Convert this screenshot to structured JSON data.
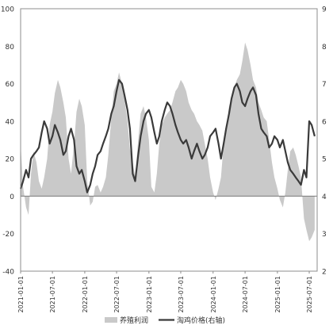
{
  "chart_data": {
    "type": "area",
    "dual_axis": true,
    "x_ticks": [
      "2021-01-01",
      "2021-07-01",
      "2022-01-01",
      "2022-07-01",
      "2023-01-01",
      "2023-07-01",
      "2024-01-01",
      "2024-07-01",
      "2025-01-01",
      "2025-07-01"
    ],
    "y_left": {
      "min": -40,
      "max": 100,
      "ticks": [
        -40,
        -20,
        0,
        20,
        40,
        60,
        80,
        100
      ]
    },
    "y_right": {
      "min": 2,
      "max": 9,
      "ticks": [
        2,
        3,
        4,
        5,
        6,
        7,
        8,
        9
      ]
    },
    "grid": false,
    "legend_position": "bottom",
    "series": [
      {
        "name": "养殖利润",
        "kind": "area",
        "axis": "left",
        "color": "#c9c9c9",
        "dates": [
          "2021-01-01",
          "2021-01-15",
          "2021-02-01",
          "2021-02-15",
          "2021-03-01",
          "2021-03-15",
          "2021-04-01",
          "2021-04-15",
          "2021-05-01",
          "2021-05-15",
          "2021-06-01",
          "2021-06-15",
          "2021-07-01",
          "2021-07-15",
          "2021-08-01",
          "2021-08-15",
          "2021-09-01",
          "2021-09-15",
          "2021-10-01",
          "2021-10-15",
          "2021-11-01",
          "2021-11-15",
          "2021-12-01",
          "2021-12-15",
          "2022-01-01",
          "2022-01-15",
          "2022-02-01",
          "2022-02-15",
          "2022-03-01",
          "2022-03-15",
          "2022-04-01",
          "2022-04-15",
          "2022-05-01",
          "2022-05-15",
          "2022-06-01",
          "2022-06-15",
          "2022-07-01",
          "2022-07-15",
          "2022-08-01",
          "2022-08-15",
          "2022-09-01",
          "2022-09-15",
          "2022-10-01",
          "2022-10-15",
          "2022-11-01",
          "2022-11-15",
          "2022-12-01",
          "2022-12-15",
          "2023-01-01",
          "2023-01-15",
          "2023-02-01",
          "2023-02-15",
          "2023-03-01",
          "2023-03-15",
          "2023-04-01",
          "2023-04-15",
          "2023-05-01",
          "2023-05-15",
          "2023-06-01",
          "2023-06-15",
          "2023-07-01",
          "2023-07-15",
          "2023-08-01",
          "2023-08-15",
          "2023-09-01",
          "2023-09-15",
          "2023-10-01",
          "2023-10-15",
          "2023-11-01",
          "2023-11-15",
          "2023-12-01",
          "2023-12-15",
          "2024-01-01",
          "2024-01-15",
          "2024-02-01",
          "2024-02-15",
          "2024-03-01",
          "2024-03-15",
          "2024-04-01",
          "2024-04-15",
          "2024-05-01",
          "2024-05-15",
          "2024-06-01",
          "2024-06-15",
          "2024-07-01",
          "2024-07-15",
          "2024-08-01",
          "2024-08-15",
          "2024-09-01",
          "2024-09-15",
          "2024-10-01",
          "2024-10-15",
          "2024-11-01",
          "2024-11-15",
          "2024-12-01",
          "2024-12-15",
          "2025-01-01",
          "2025-01-15",
          "2025-02-01",
          "2025-02-15",
          "2025-03-01",
          "2025-03-15",
          "2025-04-01",
          "2025-04-15",
          "2025-05-01",
          "2025-05-15",
          "2025-06-01",
          "2025-06-15",
          "2025-07-01",
          "2025-07-15",
          "2025-08-01"
        ],
        "values": [
          28,
          5,
          -6,
          -10,
          12,
          24,
          18,
          8,
          4,
          10,
          20,
          38,
          45,
          55,
          62,
          58,
          50,
          42,
          20,
          12,
          28,
          45,
          52,
          48,
          38,
          8,
          -5,
          -3,
          5,
          6,
          2,
          5,
          10,
          22,
          42,
          56,
          60,
          66,
          60,
          52,
          40,
          25,
          18,
          10,
          30,
          44,
          48,
          42,
          30,
          5,
          2,
          12,
          28,
          38,
          42,
          44,
          46,
          50,
          56,
          58,
          62,
          60,
          56,
          50,
          46,
          44,
          40,
          38,
          35,
          28,
          20,
          10,
          2,
          -2,
          4,
          10,
          28,
          36,
          48,
          52,
          58,
          62,
          65,
          72,
          82,
          78,
          70,
          62,
          58,
          50,
          46,
          42,
          40,
          30,
          18,
          10,
          4,
          -2,
          -6,
          2,
          14,
          24,
          26,
          22,
          16,
          10,
          -12,
          -18,
          -24,
          -22,
          -18
        ]
      },
      {
        "name": "淘鸡价格(右轴)",
        "kind": "line",
        "axis": "right",
        "color": "#3a3a3a",
        "dates": [
          "2021-01-01",
          "2021-01-15",
          "2021-02-01",
          "2021-02-15",
          "2021-03-01",
          "2021-03-15",
          "2021-04-01",
          "2021-04-15",
          "2021-05-01",
          "2021-05-15",
          "2021-06-01",
          "2021-06-15",
          "2021-07-01",
          "2021-07-15",
          "2021-08-01",
          "2021-08-15",
          "2021-09-01",
          "2021-09-15",
          "2021-10-01",
          "2021-10-15",
          "2021-11-01",
          "2021-11-15",
          "2021-12-01",
          "2021-12-15",
          "2022-01-01",
          "2022-01-15",
          "2022-02-01",
          "2022-02-15",
          "2022-03-01",
          "2022-03-15",
          "2022-04-01",
          "2022-04-15",
          "2022-05-01",
          "2022-05-15",
          "2022-06-01",
          "2022-06-15",
          "2022-07-01",
          "2022-07-15",
          "2022-08-01",
          "2022-08-15",
          "2022-09-01",
          "2022-09-15",
          "2022-10-01",
          "2022-10-15",
          "2022-11-01",
          "2022-11-15",
          "2022-12-01",
          "2022-12-15",
          "2023-01-01",
          "2023-01-15",
          "2023-02-01",
          "2023-02-15",
          "2023-03-01",
          "2023-03-15",
          "2023-04-01",
          "2023-04-15",
          "2023-05-01",
          "2023-05-15",
          "2023-06-01",
          "2023-06-15",
          "2023-07-01",
          "2023-07-15",
          "2023-08-01",
          "2023-08-15",
          "2023-09-01",
          "2023-09-15",
          "2023-10-01",
          "2023-10-15",
          "2023-11-01",
          "2023-11-15",
          "2023-12-01",
          "2023-12-15",
          "2024-01-01",
          "2024-01-15",
          "2024-02-01",
          "2024-02-15",
          "2024-03-01",
          "2024-03-15",
          "2024-04-01",
          "2024-04-15",
          "2024-05-01",
          "2024-05-15",
          "2024-06-01",
          "2024-06-15",
          "2024-07-01",
          "2024-07-15",
          "2024-08-01",
          "2024-08-15",
          "2024-09-01",
          "2024-09-15",
          "2024-10-01",
          "2024-10-15",
          "2024-11-01",
          "2024-11-15",
          "2024-12-01",
          "2024-12-15",
          "2025-01-01",
          "2025-01-15",
          "2025-02-01",
          "2025-02-15",
          "2025-03-01",
          "2025-03-15",
          "2025-04-01",
          "2025-04-15",
          "2025-05-01",
          "2025-05-15",
          "2025-06-01",
          "2025-06-15",
          "2025-07-01",
          "2025-07-15",
          "2025-08-01"
        ],
        "values": [
          4.2,
          4.4,
          4.7,
          4.5,
          5.0,
          5.1,
          5.2,
          5.3,
          5.7,
          6.0,
          5.8,
          5.4,
          5.6,
          5.9,
          5.7,
          5.5,
          5.1,
          5.2,
          5.6,
          5.8,
          5.5,
          4.8,
          4.6,
          4.7,
          4.4,
          4.1,
          4.3,
          4.6,
          4.8,
          5.1,
          5.2,
          5.4,
          5.6,
          5.8,
          6.2,
          6.4,
          6.8,
          7.1,
          7.0,
          6.7,
          6.3,
          5.8,
          4.6,
          4.4,
          5.1,
          5.6,
          6.0,
          6.2,
          6.3,
          6.1,
          5.7,
          5.4,
          5.6,
          6.0,
          6.3,
          6.5,
          6.4,
          6.2,
          5.9,
          5.7,
          5.5,
          5.4,
          5.5,
          5.3,
          5.0,
          5.2,
          5.4,
          5.2,
          5.0,
          5.1,
          5.3,
          5.6,
          5.7,
          5.8,
          5.4,
          5.0,
          5.4,
          5.8,
          6.2,
          6.6,
          6.9,
          7.0,
          6.8,
          6.5,
          6.4,
          6.6,
          6.8,
          6.9,
          6.7,
          6.2,
          5.8,
          5.7,
          5.6,
          5.3,
          5.4,
          5.6,
          5.5,
          5.3,
          5.5,
          5.2,
          4.9,
          4.7,
          4.6,
          4.5,
          4.4,
          4.3,
          4.7,
          4.5,
          6.0,
          5.9,
          5.6
        ]
      }
    ]
  }
}
